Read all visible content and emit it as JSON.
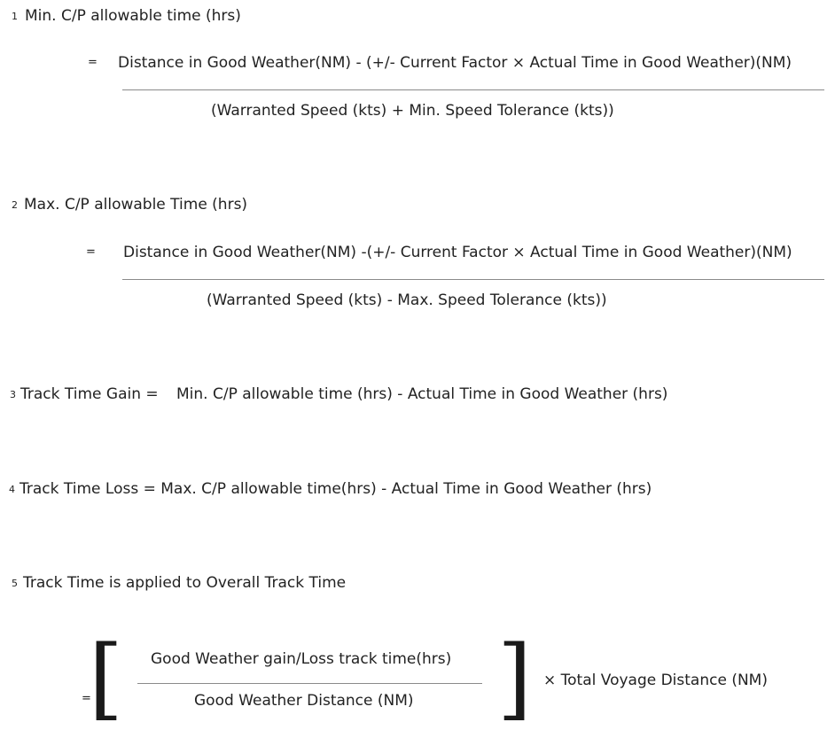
{
  "formula1": {
    "number": "1",
    "title": "Min. C/P allowable time (hrs)",
    "equals": "=",
    "numerator": "Distance in Good Weather(NM) - (+/- Current Factor × Actual Time in Good Weather)(NM)",
    "denominator": "(Warranted Speed (kts) + Min. Speed Tolerance (kts))"
  },
  "formula2": {
    "number": "2",
    "title": "Max. C/P allowable Time (hrs)",
    "equals": "=",
    "numerator": "Distance in Good Weather(NM) -(+/- Current Factor × Actual Time in Good Weather)(NM)",
    "denominator": "(Warranted Speed (kts) - Max. Speed Tolerance (kts))"
  },
  "formula3": {
    "number": "3",
    "label": "Track Time Gain =",
    "expression": "Min. C/P allowable time (hrs) - Actual Time in Good Weather  (hrs)"
  },
  "formula4": {
    "number": "4",
    "text": "Track Time Loss = Max. C/P allowable time(hrs) - Actual Time in Good Weather (hrs)"
  },
  "formula5": {
    "number": "5",
    "title": "Track Time is applied to Overall Track Time",
    "equals": "=",
    "left_bracket": "[",
    "right_bracket": "]",
    "numerator": "Good Weather gain/Loss track time(hrs)",
    "denominator": "Good Weather Distance (NM)",
    "multiplier": "× Total Voyage Distance (NM)"
  }
}
